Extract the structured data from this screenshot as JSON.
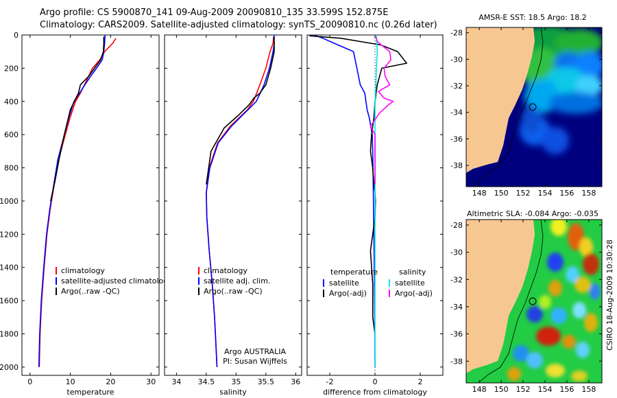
{
  "header": {
    "line1": "Argo profile: CS 5900870_141 09-Aug-2009 20090810_135 33.599S 152.875E",
    "line2": "Climatology: CARS2009. Satellite-adjusted climatology: synTS_20090810.nc (0.26d later)"
  },
  "colors": {
    "climatology": "#ff0000",
    "satellite": "#0000ff",
    "argo": "#000000",
    "salinity_satellite": "#00e5ee",
    "salinity_argo": "#ff00ff",
    "land": "#f7c792"
  },
  "chart_data": [
    {
      "type": "line",
      "xlabel": "temperature",
      "ylim": [
        0,
        2050
      ],
      "xlim": [
        -2,
        32
      ],
      "y_reversed": true,
      "x_ticks": [
        "0",
        "10",
        "20",
        "30"
      ],
      "y_ticks": [
        "0",
        "200",
        "400",
        "600",
        "800",
        "1000",
        "1200",
        "1400",
        "1600",
        "1800",
        "2000"
      ],
      "legend": {
        "title": "",
        "items": [
          "climatology",
          "satellite-adjusted climatology",
          "Argo(..raw -QC)"
        ]
      },
      "series": [
        {
          "name": "climatology",
          "color_key": "climatology",
          "x": [
            21.3,
            20.5,
            18.5,
            17.3,
            15.5,
            13.5,
            12.5,
            11.3,
            9.9,
            8.2,
            7.1,
            6.0,
            5.0,
            4.2,
            3.5,
            2.9,
            2.5,
            2.3
          ],
          "y": [
            20,
            50,
            100,
            150,
            200,
            300,
            350,
            400,
            500,
            650,
            750,
            900,
            1050,
            1200,
            1400,
            1600,
            1800,
            2000
          ]
        },
        {
          "name": "satellite-adjusted climatology",
          "color_key": "satellite",
          "x": [
            18.6,
            18.5,
            18.3,
            17.9,
            16.5,
            15.0,
            13.6,
            12.3,
            10.9,
            9.6,
            8.0,
            6.9,
            5.9,
            4.9,
            4.1,
            3.4,
            2.8,
            2.4,
            2.2
          ],
          "y": [
            0,
            50,
            100,
            150,
            200,
            250,
            300,
            350,
            400,
            500,
            650,
            750,
            900,
            1050,
            1200,
            1400,
            1600,
            1800,
            2000
          ]
        },
        {
          "name": "Argo(..raw -QC)",
          "color_key": "argo",
          "x": [
            18.3,
            18.3,
            18.2,
            17.5,
            16.0,
            14.5,
            12.5,
            12.0,
            11.0,
            10.0,
            8.5,
            7.2,
            6.2,
            5.1
          ],
          "y": [
            10,
            50,
            100,
            150,
            200,
            250,
            300,
            350,
            400,
            450,
            600,
            750,
            880,
            1000
          ]
        }
      ]
    },
    {
      "type": "line",
      "xlabel": "salinity",
      "ylim": [
        0,
        2050
      ],
      "xlim": [
        33.8,
        36.1
      ],
      "y_reversed": true,
      "x_ticks": [
        "34",
        "34.5",
        "35",
        "35.5",
        "36"
      ],
      "legend": {
        "title": "",
        "items": [
          "climatology",
          "satellite adj. clim.",
          "Argo(..raw -QC)"
        ]
      },
      "annotation": [
        "Argo AUSTRALIA",
        "PI: Susan Wijffels"
      ],
      "series": [
        {
          "name": "climatology",
          "color_key": "climatology",
          "x": [
            35.63,
            35.62,
            35.57,
            35.5,
            35.4,
            35.29,
            35.19,
            34.9,
            34.69,
            34.55,
            34.5,
            34.51,
            34.55,
            34.6,
            34.64,
            34.66,
            34.68
          ],
          "y": [
            10,
            50,
            100,
            200,
            300,
            400,
            450,
            550,
            650,
            800,
            950,
            1100,
            1300,
            1500,
            1700,
            1850,
            2000
          ]
        },
        {
          "name": "satellite adj. clim.",
          "color_key": "satellite",
          "x": [
            35.64,
            35.64,
            35.62,
            35.56,
            35.47,
            35.34,
            35.2,
            34.92,
            34.7,
            34.56,
            34.5,
            34.51,
            34.55,
            34.6,
            34.64,
            34.66,
            34.68
          ],
          "y": [
            0,
            50,
            100,
            200,
            300,
            400,
            450,
            550,
            650,
            800,
            950,
            1100,
            1300,
            1500,
            1700,
            1850,
            2000
          ]
        },
        {
          "name": "Argo(..raw -QC)",
          "color_key": "argo",
          "x": [
            35.63,
            35.64,
            35.64,
            35.58,
            35.5,
            35.4,
            35.3,
            35.22,
            35.05,
            34.8,
            34.58,
            34.5
          ],
          "y": [
            10,
            50,
            100,
            200,
            300,
            350,
            380,
            420,
            480,
            560,
            700,
            900
          ]
        }
      ]
    },
    {
      "type": "line",
      "xlabel": "difference from climatology",
      "ylim": [
        0,
        2050
      ],
      "xlim": [
        -3,
        3
      ],
      "y_reversed": true,
      "x_ticks": [
        "-2",
        "0",
        "2"
      ],
      "legend": {
        "title": "temperature",
        "items": [
          "satellite",
          "Argo(-adj)"
        ],
        "title2": "salinity",
        "items2": [
          "satellite",
          "Argo(-adj)"
        ]
      },
      "series": [
        {
          "name": "satellite",
          "color_key": "satellite",
          "group": "temperature",
          "x": [
            -2.7,
            -2.3,
            -1.8,
            -0.95,
            -0.8,
            -0.65,
            -0.45,
            -0.35,
            -0.25,
            -0.12,
            -0.1,
            -0.08,
            -0.06,
            -0.04,
            -0.02,
            -0.01,
            0.0
          ],
          "y": [
            0,
            20,
            50,
            100,
            200,
            300,
            350,
            450,
            500,
            600,
            700,
            900,
            1100,
            1300,
            1600,
            1800,
            2000
          ]
        },
        {
          "name": "Argo(-adj)",
          "color_key": "argo",
          "group": "temperature",
          "x": [
            -2.9,
            -1.5,
            0.25,
            1.0,
            1.4,
            0.3,
            0.1,
            0.0,
            -0.05,
            -0.15,
            -0.2,
            -0.1,
            -0.05,
            0.0,
            0.02,
            0.0,
            -0.2,
            -0.1,
            -0.1,
            0.0
          ],
          "y": [
            5,
            20,
            60,
            100,
            170,
            200,
            300,
            400,
            500,
            600,
            700,
            800,
            900,
            950,
            1000,
            1100,
            1300,
            1500,
            1700,
            1800
          ]
        },
        {
          "name": "satellite",
          "color_key": "salinity_satellite",
          "group": "salinity",
          "x": [
            0.05,
            0.08,
            0.1,
            0.06,
            0.04,
            0.0,
            0.0,
            0.0,
            0.0,
            0.0,
            0.0
          ],
          "y": [
            0,
            50,
            100,
            200,
            300,
            400,
            600,
            800,
            1200,
            1600,
            2000
          ]
        },
        {
          "name": "Argo(-adj)",
          "color_key": "salinity_argo",
          "group": "salinity",
          "x": [
            0.05,
            0.1,
            0.65,
            0.7,
            0.4,
            0.45,
            0.65,
            0.15,
            0.4,
            0.8,
            0.6,
            0.2,
            -0.2,
            0.0,
            0.0,
            0.0
          ],
          "y": [
            10,
            40,
            100,
            150,
            200,
            250,
            300,
            340,
            380,
            400,
            420,
            470,
            550,
            600,
            700,
            900
          ]
        }
      ]
    }
  ],
  "maps": [
    {
      "title": "AMSR-E SST: 18.5 Argo: 18.2",
      "x_ticks": [
        "148",
        "150",
        "152",
        "154",
        "156",
        "158"
      ],
      "y_ticks": [
        "-28",
        "-30",
        "-32",
        "-34",
        "-36",
        "-38"
      ],
      "xlim": [
        146.8,
        159.2
      ],
      "ylim": [
        -39.6,
        -27.6
      ],
      "argo_position": {
        "lon": 152.875,
        "lat": -33.599
      }
    },
    {
      "title": "Altimetric SLA: -0.084 Argo: -0.035",
      "x_ticks": [
        "148",
        "150",
        "152",
        "154",
        "156",
        "158"
      ],
      "y_ticks": [
        "-28",
        "-30",
        "-32",
        "-34",
        "-36",
        "-38"
      ],
      "xlim": [
        146.8,
        159.2
      ],
      "ylim": [
        -39.6,
        -27.6
      ],
      "argo_position": {
        "lon": 152.875,
        "lat": -33.599
      }
    }
  ],
  "side_label": "CSIRO 18-Aug-2009 10:30:28"
}
